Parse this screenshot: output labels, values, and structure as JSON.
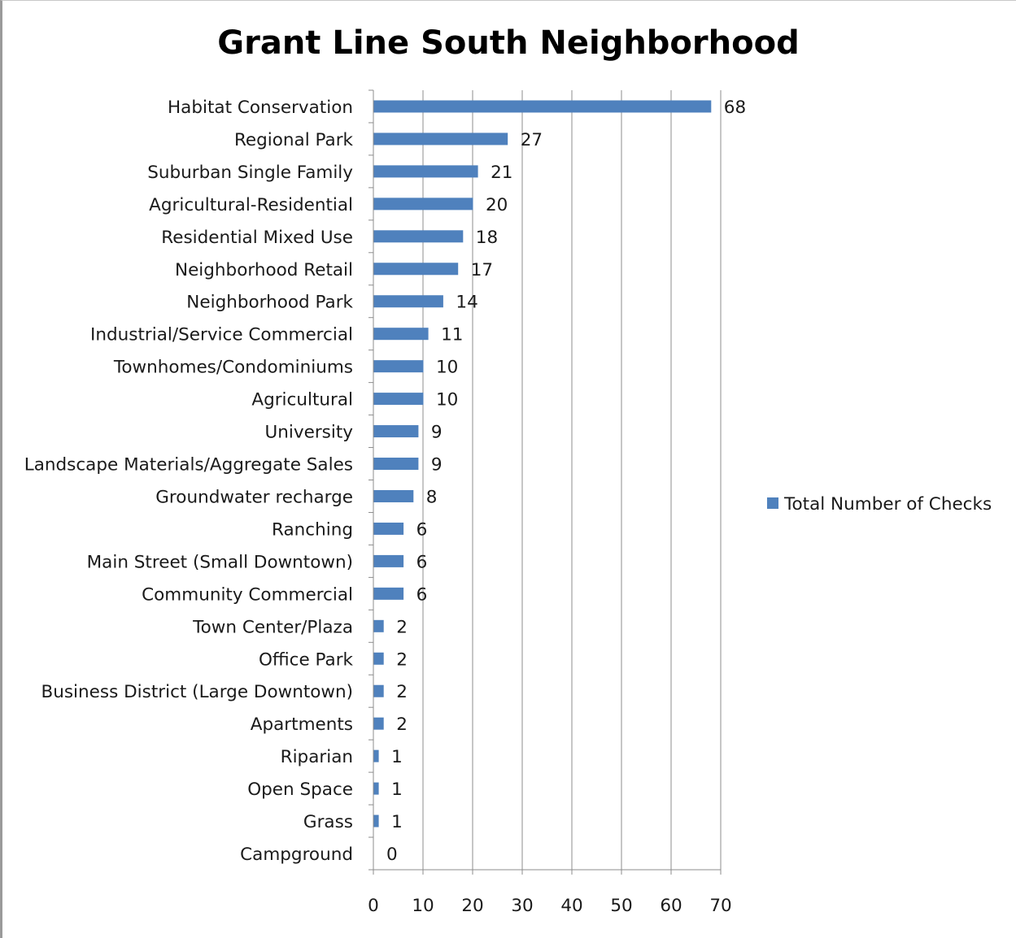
{
  "chart_data": {
    "type": "bar",
    "orientation": "horizontal",
    "title": "Grant Line South Neighborhood",
    "xlabel": "",
    "ylabel": "",
    "xlim": [
      0,
      70
    ],
    "x_ticks": [
      0,
      10,
      20,
      30,
      40,
      50,
      60,
      70
    ],
    "grid": "vertical major gridlines",
    "legend_position": "right",
    "bar_color": "#4F81BD",
    "categories": [
      "Habitat Conservation",
      "Regional Park",
      "Suburban Single Family",
      "Agricultural-Residential",
      "Residential Mixed Use",
      "Neighborhood Retail",
      "Neighborhood Park",
      "Industrial/Service Commercial",
      "Townhomes/Condominiums",
      "Agricultural",
      "University",
      "Landscape Materials/Aggregate Sales",
      "Groundwater recharge",
      "Ranching",
      "Main Street (Small Downtown)",
      "Community Commercial",
      "Town Center/Plaza",
      "Office Park",
      "Business District (Large Downtown)",
      "Apartments",
      "Riparian",
      "Open Space",
      "Grass",
      "Campground"
    ],
    "series": [
      {
        "name": "Total Number of Checks",
        "values": [
          68,
          27,
          21,
          20,
          18,
          17,
          14,
          11,
          10,
          10,
          9,
          9,
          8,
          6,
          6,
          6,
          2,
          2,
          2,
          2,
          1,
          1,
          1,
          0
        ]
      }
    ]
  }
}
